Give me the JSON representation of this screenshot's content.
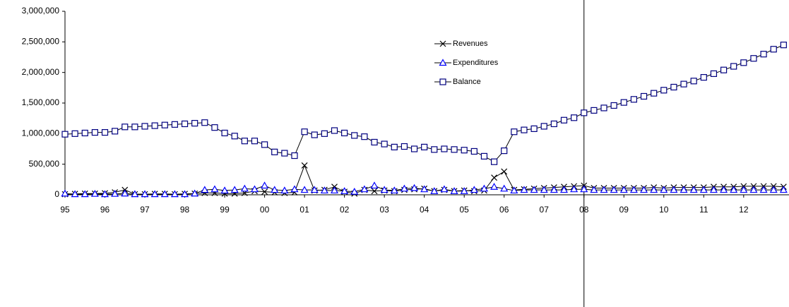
{
  "chart_data": {
    "type": "line",
    "x": [
      1995,
      1995.25,
      1995.5,
      1995.75,
      1996,
      1996.25,
      1996.5,
      1996.75,
      1997,
      1997.25,
      1997.5,
      1997.75,
      1998,
      1998.25,
      1998.5,
      1998.75,
      1999,
      1999.25,
      1999.5,
      1999.75,
      2000,
      2000.25,
      2000.5,
      2000.75,
      2001,
      2001.25,
      2001.5,
      2001.75,
      2002,
      2002.25,
      2002.5,
      2002.75,
      2003,
      2003.25,
      2003.5,
      2003.75,
      2004,
      2004.25,
      2004.5,
      2004.75,
      2005,
      2005.25,
      2005.5,
      2005.75,
      2006,
      2006.25,
      2006.5,
      2006.75,
      2007,
      2007.25,
      2007.5,
      2007.75,
      2008,
      2008.25,
      2008.5,
      2008.75,
      2009,
      2009.25,
      2009.5,
      2009.75,
      2010,
      2010.25,
      2010.5,
      2010.75,
      2011,
      2011.25,
      2011.5,
      2011.75,
      2012,
      2012.25,
      2012.5,
      2012.75,
      2013
    ],
    "series": [
      {
        "name": "Revenues",
        "color": "#000000",
        "marker": "x",
        "values": [
          10000,
          15000,
          20000,
          20000,
          25000,
          40000,
          80000,
          10000,
          10000,
          15000,
          15000,
          10000,
          15000,
          20000,
          30000,
          30000,
          20000,
          20000,
          30000,
          60000,
          50000,
          40000,
          30000,
          40000,
          480000,
          70000,
          80000,
          130000,
          50000,
          20000,
          80000,
          60000,
          70000,
          60000,
          80000,
          90000,
          100000,
          60000,
          80000,
          60000,
          70000,
          60000,
          70000,
          280000,
          380000,
          80000,
          90000,
          100000,
          110000,
          120000,
          130000,
          140000,
          150000,
          110000,
          110000,
          110000,
          110000,
          110000,
          110000,
          120000,
          110000,
          120000,
          120000,
          120000,
          120000,
          130000,
          130000,
          130000,
          140000,
          140000,
          140000,
          140000,
          130000
        ]
      },
      {
        "name": "Expenditures",
        "color": "#0000ff",
        "marker": "triangle",
        "values": [
          20000,
          10000,
          10000,
          15000,
          10000,
          15000,
          20000,
          10000,
          10000,
          10000,
          10000,
          10000,
          10000,
          20000,
          80000,
          90000,
          70000,
          80000,
          100000,
          90000,
          150000,
          80000,
          70000,
          90000,
          80000,
          80000,
          70000,
          70000,
          60000,
          50000,
          90000,
          150000,
          80000,
          70000,
          100000,
          110000,
          90000,
          60000,
          90000,
          60000,
          60000,
          80000,
          100000,
          130000,
          100000,
          70000,
          80000,
          80000,
          80000,
          80000,
          80000,
          90000,
          90000,
          80000,
          80000,
          80000,
          80000,
          80000,
          80000,
          80000,
          80000,
          80000,
          80000,
          80000,
          80000,
          80000,
          80000,
          80000,
          80000,
          80000,
          80000,
          80000,
          80000
        ]
      },
      {
        "name": "Balance",
        "color": "#000080",
        "marker": "square",
        "values": [
          990000,
          1000000,
          1010000,
          1020000,
          1020000,
          1040000,
          1110000,
          1110000,
          1120000,
          1130000,
          1140000,
          1150000,
          1160000,
          1170000,
          1180000,
          1100000,
          1010000,
          960000,
          880000,
          880000,
          820000,
          700000,
          680000,
          640000,
          1030000,
          980000,
          1000000,
          1050000,
          1010000,
          970000,
          950000,
          860000,
          830000,
          780000,
          790000,
          750000,
          780000,
          740000,
          750000,
          740000,
          730000,
          710000,
          630000,
          540000,
          720000,
          1030000,
          1060000,
          1080000,
          1120000,
          1160000,
          1220000,
          1260000,
          1340000,
          1380000,
          1420000,
          1460000,
          1510000,
          1560000,
          1610000,
          1660000,
          1710000,
          1760000,
          1810000,
          1860000,
          1920000,
          1980000,
          2040000,
          2100000,
          2160000,
          2230000,
          2300000,
          2380000,
          2450000
        ]
      }
    ],
    "xlim": [
      1995,
      2013.1
    ],
    "xticks": [
      {
        "value": 1995,
        "label": "95"
      },
      {
        "value": 1996,
        "label": "96"
      },
      {
        "value": 1997,
        "label": "97"
      },
      {
        "value": 1998,
        "label": "98"
      },
      {
        "value": 1999,
        "label": "99"
      },
      {
        "value": 2000,
        "label": "00"
      },
      {
        "value": 2001,
        "label": "01"
      },
      {
        "value": 2002,
        "label": "02"
      },
      {
        "value": 2003,
        "label": "03"
      },
      {
        "value": 2004,
        "label": "04"
      },
      {
        "value": 2005,
        "label": "05"
      },
      {
        "value": 2006,
        "label": "06"
      },
      {
        "value": 2007,
        "label": "07"
      },
      {
        "value": 2008,
        "label": "08"
      },
      {
        "value": 2009,
        "label": "09"
      },
      {
        "value": 2010,
        "label": "10"
      },
      {
        "value": 2011,
        "label": "11"
      },
      {
        "value": 2012,
        "label": "12"
      }
    ],
    "ylim": [
      0,
      3000000
    ],
    "yticks": [
      0,
      {
        "value": 500000,
        "label": "500,000"
      },
      {
        "value": 1000000,
        "label": "1,000,000"
      },
      {
        "value": 1500000,
        "label": "1,500,000"
      },
      {
        "value": 2000000,
        "label": "2,000,000"
      },
      {
        "value": 2500000,
        "label": "2,500,000"
      },
      {
        "value": 3000000,
        "label": "3,000,000"
      }
    ],
    "vertical_line_x": 2008,
    "grid": false
  }
}
